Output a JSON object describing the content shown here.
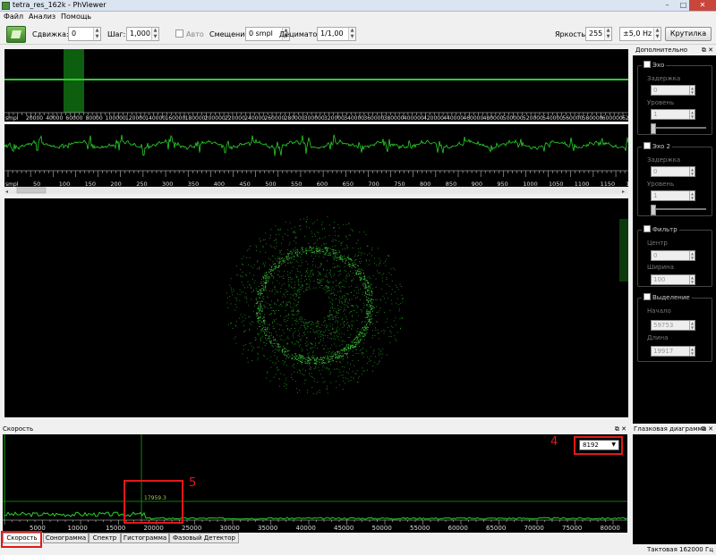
{
  "window": {
    "title": "tetra_res_162k - PhViewer",
    "minimize": "–",
    "maximize": "□",
    "close": "✕"
  },
  "menu": [
    "Файл",
    "Анализ",
    "Помощь"
  ],
  "toolbar": {
    "shift_label": "Сдвижка:",
    "shift_value": "0",
    "step_label": "Шаг:",
    "step_value": "1,000",
    "auto_label": "Авто",
    "offset_label": "Смещение:",
    "offset_value": "0 smpl",
    "decimator_label": "Дециматор:",
    "decimator_value": "1/1,00",
    "brightness_label": "Яркость:",
    "brightness_value": "255",
    "freq_value": "±5,0 Hz",
    "rotate_button": "Крутилка"
  },
  "top_strip": {
    "unit": "smpl",
    "ticks": [
      "20000",
      "40000",
      "60000",
      "80000",
      "100000",
      "120000",
      "140000",
      "160000",
      "180000",
      "200000",
      "220000",
      "240000",
      "260000",
      "280000",
      "300000",
      "320000",
      "340000",
      "360000",
      "380000",
      "400000",
      "420000",
      "440000",
      "460000",
      "480000",
      "500000",
      "520000",
      "540000",
      "560000",
      "580000",
      "600000",
      "620000"
    ]
  },
  "wave_strip": {
    "unit": "smpl",
    "ticks": [
      "50",
      "100",
      "150",
      "200",
      "250",
      "300",
      "350",
      "400",
      "450",
      "500",
      "550",
      "600",
      "650",
      "700",
      "750",
      "800",
      "850",
      "900",
      "950",
      "1000",
      "1050",
      "1100",
      "1150",
      "12"
    ]
  },
  "dock": {
    "title": "Дополнительно",
    "echo": {
      "title": "Эхо",
      "delay_label": "Задержка",
      "delay_value": "0",
      "level_label": "Уровень",
      "level_value": "1"
    },
    "echo2": {
      "title": "Эхо 2",
      "delay_label": "Задержка",
      "delay_value": "0",
      "level_label": "Уровень",
      "level_value": "1"
    },
    "filter": {
      "title": "Фильтр",
      "center_label": "Центр",
      "center_value": "0",
      "width_label": "Ширина",
      "width_value": "100"
    },
    "selection": {
      "title": "Выделение",
      "start_label": "Начало",
      "start_value": "59753",
      "length_label": "Длина",
      "length_value": "19917"
    }
  },
  "speed": {
    "title": "Скорость",
    "dropdown_value": "8192",
    "readout": "17959.3",
    "ticks": [
      "5000",
      "10000",
      "15000",
      "20000",
      "25000",
      "30000",
      "35000",
      "40000",
      "45000",
      "50000",
      "55000",
      "60000",
      "65000",
      "70000",
      "75000",
      "80000"
    ]
  },
  "eye": {
    "title": "Глазковая диаграмма"
  },
  "tabs": [
    "Скорость",
    "Сонограмма",
    "Спектр",
    "Гистограмма",
    "Фазовый Детектор"
  ],
  "status": "Тактовая 162000 Гц",
  "annotations": {
    "a4": "4",
    "a5": "5"
  }
}
